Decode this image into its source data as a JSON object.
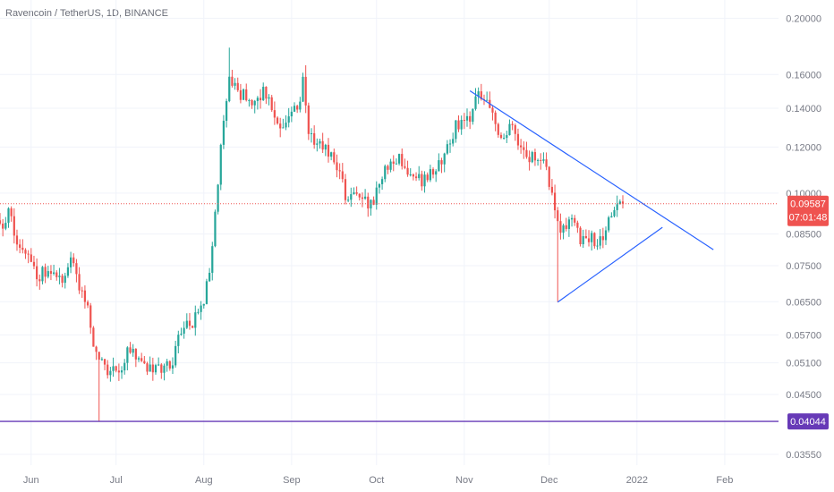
{
  "header": {
    "symbol_title": "Ravencoin / TetherUS, 1D, BINANCE"
  },
  "colors": {
    "up": "#26a69a",
    "down": "#ef5350",
    "grid": "#f0f3fa",
    "axis_text": "#787b86",
    "trendline": "#2962ff",
    "support_line": "#673ab7",
    "price_line": "#ef5350"
  },
  "price_label": {
    "value": "0.09587",
    "countdown": "07:01:48"
  },
  "support_label": {
    "value": "0.04044"
  },
  "chart_data": {
    "type": "candlestick",
    "title": "Ravencoin / TetherUS, 1D, BINANCE",
    "y_scale": "log",
    "y_ticks": [
      "0.20000",
      "0.16000",
      "0.14000",
      "0.12000",
      "0.10000",
      "0.08500",
      "0.07500",
      "0.06500",
      "0.05700",
      "0.05100",
      "0.04500",
      "0.03550"
    ],
    "x_ticks": [
      "Jun",
      "Jul",
      "Aug",
      "Sep",
      "Oct",
      "Nov",
      "Dec",
      "2022",
      "Feb"
    ],
    "x_tick_dates": [
      "2021-06-01",
      "2021-07-01",
      "2021-08-01",
      "2021-09-01",
      "2021-10-01",
      "2021-11-01",
      "2021-12-01",
      "2022-01-01",
      "2022-02-01"
    ],
    "ylim": [
      0.034,
      0.215
    ],
    "xlim": [
      "2021-05-21",
      "2022-02-20"
    ],
    "last_price": 0.09587,
    "support_level": 0.04044,
    "keypoints": [
      [
        "2021-05-21",
        0.088
      ],
      [
        "2021-05-24",
        0.092
      ],
      [
        "2021-05-27",
        0.083
      ],
      [
        "2021-05-31",
        0.077
      ],
      [
        "2021-06-04",
        0.072
      ],
      [
        "2021-06-08",
        0.074
      ],
      [
        "2021-06-12",
        0.071
      ],
      [
        "2021-06-15",
        0.077
      ],
      [
        "2021-06-18",
        0.07
      ],
      [
        "2021-06-21",
        0.063
      ],
      [
        "2021-06-24",
        0.052
      ],
      [
        "2021-06-28",
        0.049
      ],
      [
        "2021-07-02",
        0.05
      ],
      [
        "2021-07-06",
        0.054
      ],
      [
        "2021-07-10",
        0.05
      ],
      [
        "2021-07-14",
        0.05
      ],
      [
        "2021-07-18",
        0.049
      ],
      [
        "2021-07-21",
        0.052
      ],
      [
        "2021-07-24",
        0.058
      ],
      [
        "2021-07-28",
        0.06
      ],
      [
        "2021-08-01",
        0.065
      ],
      [
        "2021-08-04",
        0.08
      ],
      [
        "2021-08-07",
        0.12
      ],
      [
        "2021-08-10",
        0.155
      ],
      [
        "2021-08-14",
        0.148
      ],
      [
        "2021-08-18",
        0.142
      ],
      [
        "2021-08-22",
        0.15
      ],
      [
        "2021-08-26",
        0.135
      ],
      [
        "2021-08-30",
        0.131
      ],
      [
        "2021-09-03",
        0.14
      ],
      [
        "2021-09-05",
        0.155
      ],
      [
        "2021-09-07",
        0.125
      ],
      [
        "2021-09-11",
        0.12
      ],
      [
        "2021-09-16",
        0.115
      ],
      [
        "2021-09-20",
        0.1
      ],
      [
        "2021-09-25",
        0.098
      ],
      [
        "2021-09-30",
        0.096
      ],
      [
        "2021-10-04",
        0.11
      ],
      [
        "2021-10-08",
        0.115
      ],
      [
        "2021-10-13",
        0.108
      ],
      [
        "2021-10-18",
        0.105
      ],
      [
        "2021-10-24",
        0.115
      ],
      [
        "2021-10-29",
        0.13
      ],
      [
        "2021-11-03",
        0.135
      ],
      [
        "2021-11-06",
        0.148
      ],
      [
        "2021-11-10",
        0.14
      ],
      [
        "2021-11-14",
        0.125
      ],
      [
        "2021-11-18",
        0.13
      ],
      [
        "2021-11-22",
        0.117
      ],
      [
        "2021-11-26",
        0.115
      ],
      [
        "2021-11-30",
        0.11
      ],
      [
        "2021-12-02",
        0.1
      ],
      [
        "2021-12-05",
        0.088
      ],
      [
        "2021-12-09",
        0.09
      ],
      [
        "2021-12-12",
        0.084
      ],
      [
        "2021-12-16",
        0.083
      ],
      [
        "2021-12-19",
        0.082
      ],
      [
        "2021-12-22",
        0.09
      ],
      [
        "2021-12-25",
        0.096
      ],
      [
        "2021-12-27",
        0.0959
      ]
    ],
    "wick_extremes": [
      {
        "date": "2021-06-25",
        "low": 0.04044
      },
      {
        "date": "2021-08-10",
        "high": 0.178
      },
      {
        "date": "2021-09-06",
        "high": 0.166
      },
      {
        "date": "2021-12-04",
        "low": 0.0649
      }
    ],
    "drawings": [
      {
        "type": "trendline",
        "from": [
          "2021-11-03",
          0.15
        ],
        "to": [
          "2022-01-28",
          0.0799
        ]
      },
      {
        "type": "trendline",
        "from": [
          "2021-12-04",
          0.0649
        ],
        "to": [
          "2022-01-10",
          0.0873
        ]
      },
      {
        "type": "horizontal_line",
        "price": 0.04044
      },
      {
        "type": "horizontal_dotted_line",
        "price": 0.09587
      }
    ]
  }
}
